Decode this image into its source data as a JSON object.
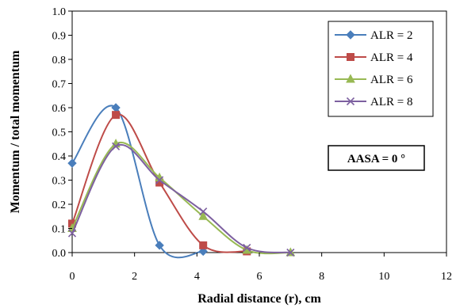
{
  "chart_data": {
    "type": "line",
    "title": "",
    "xlabel": "Radial distance (r), cm",
    "ylabel": "Momentum / total momentum",
    "xlim": [
      0,
      12
    ],
    "ylim": [
      0,
      1.0
    ],
    "xticks": [
      "0",
      "2",
      "4",
      "6",
      "8",
      "10",
      "12"
    ],
    "yticks": [
      "0.0",
      "0.1",
      "0.2",
      "0.3",
      "0.4",
      "0.5",
      "0.6",
      "0.7",
      "0.8",
      "0.9",
      "1.0"
    ],
    "grid": false,
    "legend_position": "top-right",
    "annotation": "AASA = 0 °",
    "series": [
      {
        "name": "ALR = 2",
        "color": "#4a7ebb",
        "marker": "diamond",
        "x": [
          0,
          1.4,
          2.8,
          4.2
        ],
        "y": [
          0.37,
          0.6,
          0.03,
          0.005
        ]
      },
      {
        "name": "ALR = 4",
        "color": "#be4b48",
        "marker": "square",
        "x": [
          0,
          1.4,
          2.8,
          4.2,
          5.6
        ],
        "y": [
          0.12,
          0.57,
          0.29,
          0.03,
          0.005
        ]
      },
      {
        "name": "ALR = 6",
        "color": "#98b954",
        "marker": "triangle",
        "x": [
          0,
          1.4,
          2.8,
          4.2,
          5.6,
          7.0
        ],
        "y": [
          0.1,
          0.45,
          0.31,
          0.15,
          0.01,
          0.0
        ]
      },
      {
        "name": "ALR = 8",
        "color": "#7d60a0",
        "marker": "x",
        "x": [
          0,
          1.4,
          2.8,
          4.2,
          5.6,
          7.0
        ],
        "y": [
          0.08,
          0.44,
          0.3,
          0.17,
          0.02,
          0.0
        ]
      }
    ]
  }
}
